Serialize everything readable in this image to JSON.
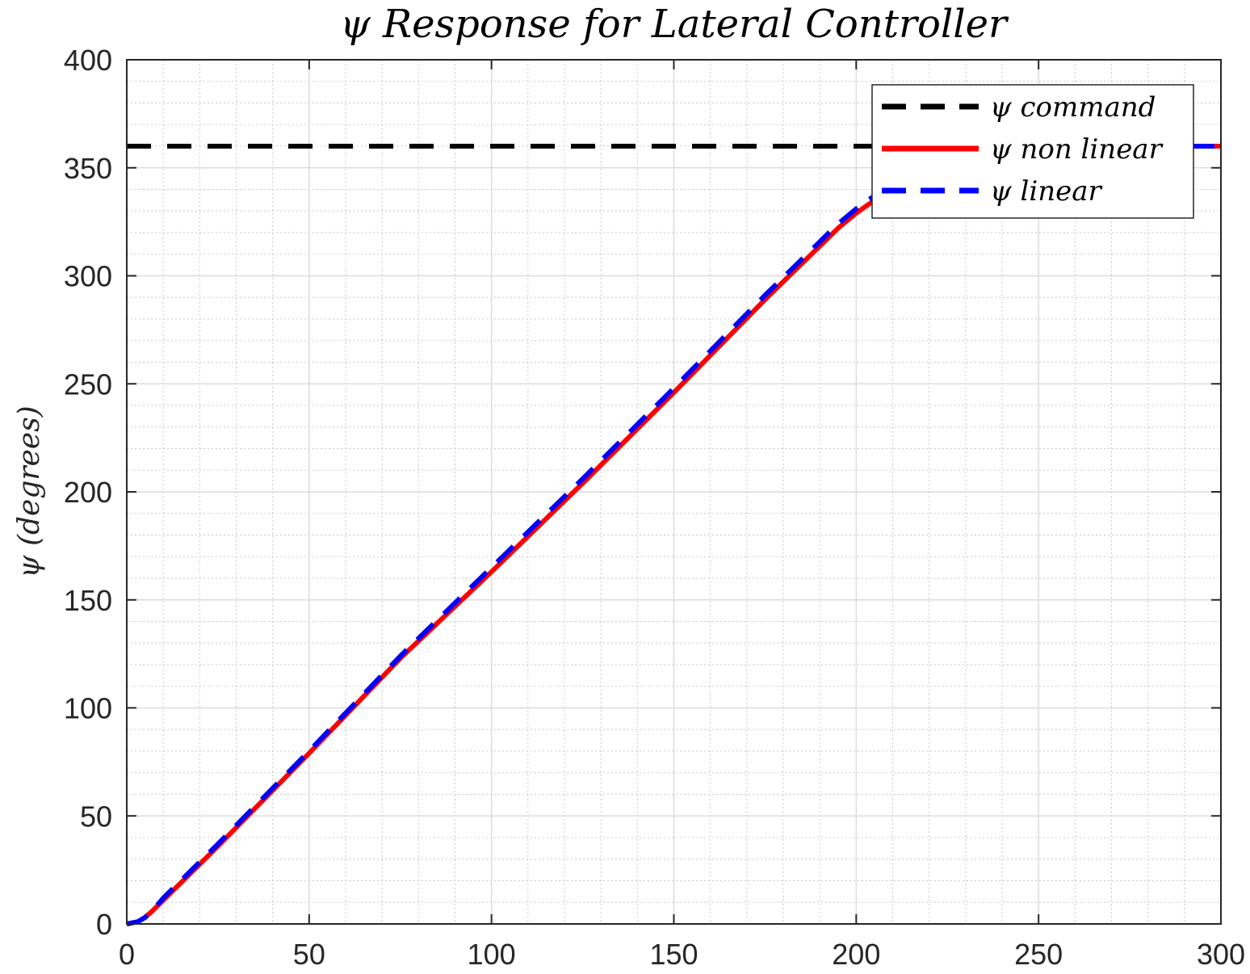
{
  "chart_data": {
    "type": "line",
    "title": "ψ Response for Lateral Controller",
    "xlabel": "",
    "ylabel": "ψ (degrees)",
    "xlim": [
      0,
      300
    ],
    "ylim": [
      0,
      400
    ],
    "xticks": [
      0,
      50,
      100,
      150,
      200,
      250,
      300
    ],
    "yticks": [
      0,
      50,
      100,
      150,
      200,
      250,
      300,
      350,
      400
    ],
    "grid": true,
    "minor_grid": true,
    "legend_position": "top-right",
    "series": [
      {
        "name": "ψ command",
        "color": "#000000",
        "style": "dashed",
        "x": [
          0,
          300
        ],
        "y": [
          360,
          360
        ]
      },
      {
        "name": "ψ non linear",
        "color": "#ff0000",
        "style": "solid",
        "x": [
          0,
          3,
          5,
          7,
          10,
          25,
          50,
          75,
          100,
          125,
          150,
          175,
          195,
          200,
          205,
          210,
          215,
          220,
          225,
          230,
          240,
          250,
          260,
          300
        ],
        "y": [
          0,
          1,
          3,
          6,
          11,
          36,
          79,
          123,
          163,
          204,
          246,
          289,
          322,
          329,
          335,
          341,
          346,
          350,
          353,
          355.5,
          358.5,
          359.5,
          360,
          360
        ]
      },
      {
        "name": "ψ linear",
        "color": "#0000ff",
        "style": "dashed",
        "x": [
          0,
          3,
          5,
          7,
          10,
          25,
          50,
          75,
          100,
          125,
          150,
          175,
          195,
          200,
          205,
          210,
          215,
          220,
          225,
          230,
          240,
          250,
          260,
          300
        ],
        "y": [
          0,
          1,
          3,
          6,
          12,
          37,
          80,
          124,
          165,
          206,
          248,
          291,
          324,
          331,
          337,
          343,
          348,
          352,
          354.5,
          356.5,
          359,
          360,
          360,
          360
        ]
      }
    ]
  }
}
